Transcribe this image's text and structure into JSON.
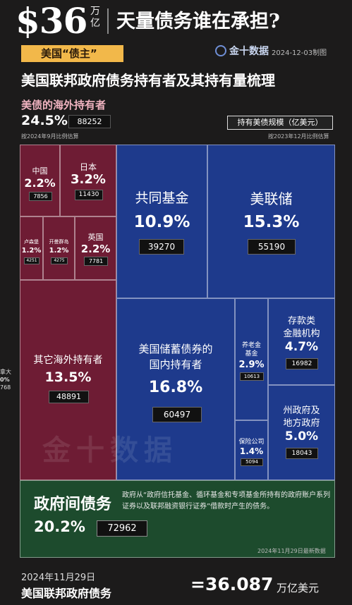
{
  "header": {
    "amount": "$36",
    "unit": "万亿",
    "title": "天量债务谁在承担?",
    "tag": "美国“债主”",
    "brand": "金十数据",
    "date": "2024-12-03制图",
    "subtitle": "美国联邦政府债务持有者及其持有量梳理"
  },
  "overseas": {
    "title": "美债的海外持有者",
    "pct": "24.5%",
    "value": "88252",
    "note": "按2024年9月比例估算"
  },
  "scale": {
    "label": "持有美债规模（亿美元）",
    "note": "按2023年12月比例估算"
  },
  "side_cut": {
    "line1": "拿大",
    "line2": "0%",
    "line3": "768"
  },
  "watermark": "金十数据",
  "chart_data": {
    "type": "treemap",
    "unit": "亿美元",
    "total": "36.087",
    "items": [
      {
        "name": "中国",
        "pct": "2.2%",
        "value": "7856",
        "group": "海外"
      },
      {
        "name": "日本",
        "pct": "3.2%",
        "value": "11430",
        "group": "海外"
      },
      {
        "name": "卢森堡",
        "pct": "1.2%",
        "value": "4251",
        "group": "海外"
      },
      {
        "name": "开曼群岛",
        "pct": "1.2%",
        "value": "4275",
        "group": "海外"
      },
      {
        "name": "英国",
        "pct": "2.2%",
        "value": "7781",
        "group": "海外"
      },
      {
        "name": "其它海外持有者",
        "pct": "13.5%",
        "value": "48891",
        "group": "海外"
      },
      {
        "name": "共同基金",
        "pct": "10.9%",
        "value": "39270",
        "group": "国内"
      },
      {
        "name": "美联储",
        "pct": "15.3%",
        "value": "55190",
        "group": "国内"
      },
      {
        "name": "美国储蓄债券的国内持有者",
        "pct": "16.8%",
        "value": "60497",
        "group": "国内"
      },
      {
        "name": "养老金基金",
        "pct": "2.9%",
        "value": "10613",
        "group": "国内"
      },
      {
        "name": "存款类金融机构",
        "pct": "4.7%",
        "value": "16982",
        "group": "国内"
      },
      {
        "name": "保险公司",
        "pct": "1.4%",
        "value": "5094",
        "group": "国内"
      },
      {
        "name": "州政府及地方政府",
        "pct": "5.0%",
        "value": "18043",
        "group": "国内"
      },
      {
        "name": "政府间债务",
        "pct": "20.2%",
        "value": "72962",
        "group": "政府间"
      }
    ]
  },
  "cells": {
    "china": {
      "l1": "中国",
      "pct": "2.2%",
      "val": "7856"
    },
    "japan": {
      "l1": "日本",
      "pct": "3.2%",
      "val": "11430"
    },
    "lux": {
      "l1": "卢森堡",
      "pct": "1.2%",
      "val": "4251"
    },
    "cayman": {
      "l1": "开曼群岛",
      "pct": "1.2%",
      "val": "4275"
    },
    "uk": {
      "l1": "英国",
      "pct": "2.2%",
      "val": "7781"
    },
    "other": {
      "l1": "其它海外持有者",
      "pct": "13.5%",
      "val": "48891"
    },
    "mutual": {
      "l1": "共同基金",
      "pct": "10.9%",
      "val": "39270"
    },
    "fed": {
      "l1": "美联储",
      "pct": "15.3%",
      "val": "55190"
    },
    "savings": {
      "l1": "美国储蓄债券的",
      "l2": "国内持有者",
      "pct": "16.8%",
      "val": "60497"
    },
    "pension": {
      "l1": "养老金",
      "l2": "基金",
      "pct": "2.9%",
      "val": "10613"
    },
    "deposit": {
      "l1": "存款类",
      "l2": "金融机构",
      "pct": "4.7%",
      "val": "16982"
    },
    "insurance": {
      "l1": "保险公司",
      "pct": "1.4%",
      "val": "5094"
    },
    "state": {
      "l1": "州政府及",
      "l2": "地方政府",
      "pct": "5.0%",
      "val": "18043"
    }
  },
  "intragov": {
    "title": "政府间债务",
    "pct": "20.2%",
    "value": "72962",
    "desc": "政府从“政府信托基金、循环基金和专项基金所持有的政府账户系列证券以及联邦融资银行证券”借款时产生的债务。",
    "date": "2024年11月29日最新数据"
  },
  "footer": {
    "date": "2024年11月29日",
    "name": "美国联邦政府债务",
    "total": "=36.087",
    "unit": "万亿美元"
  }
}
